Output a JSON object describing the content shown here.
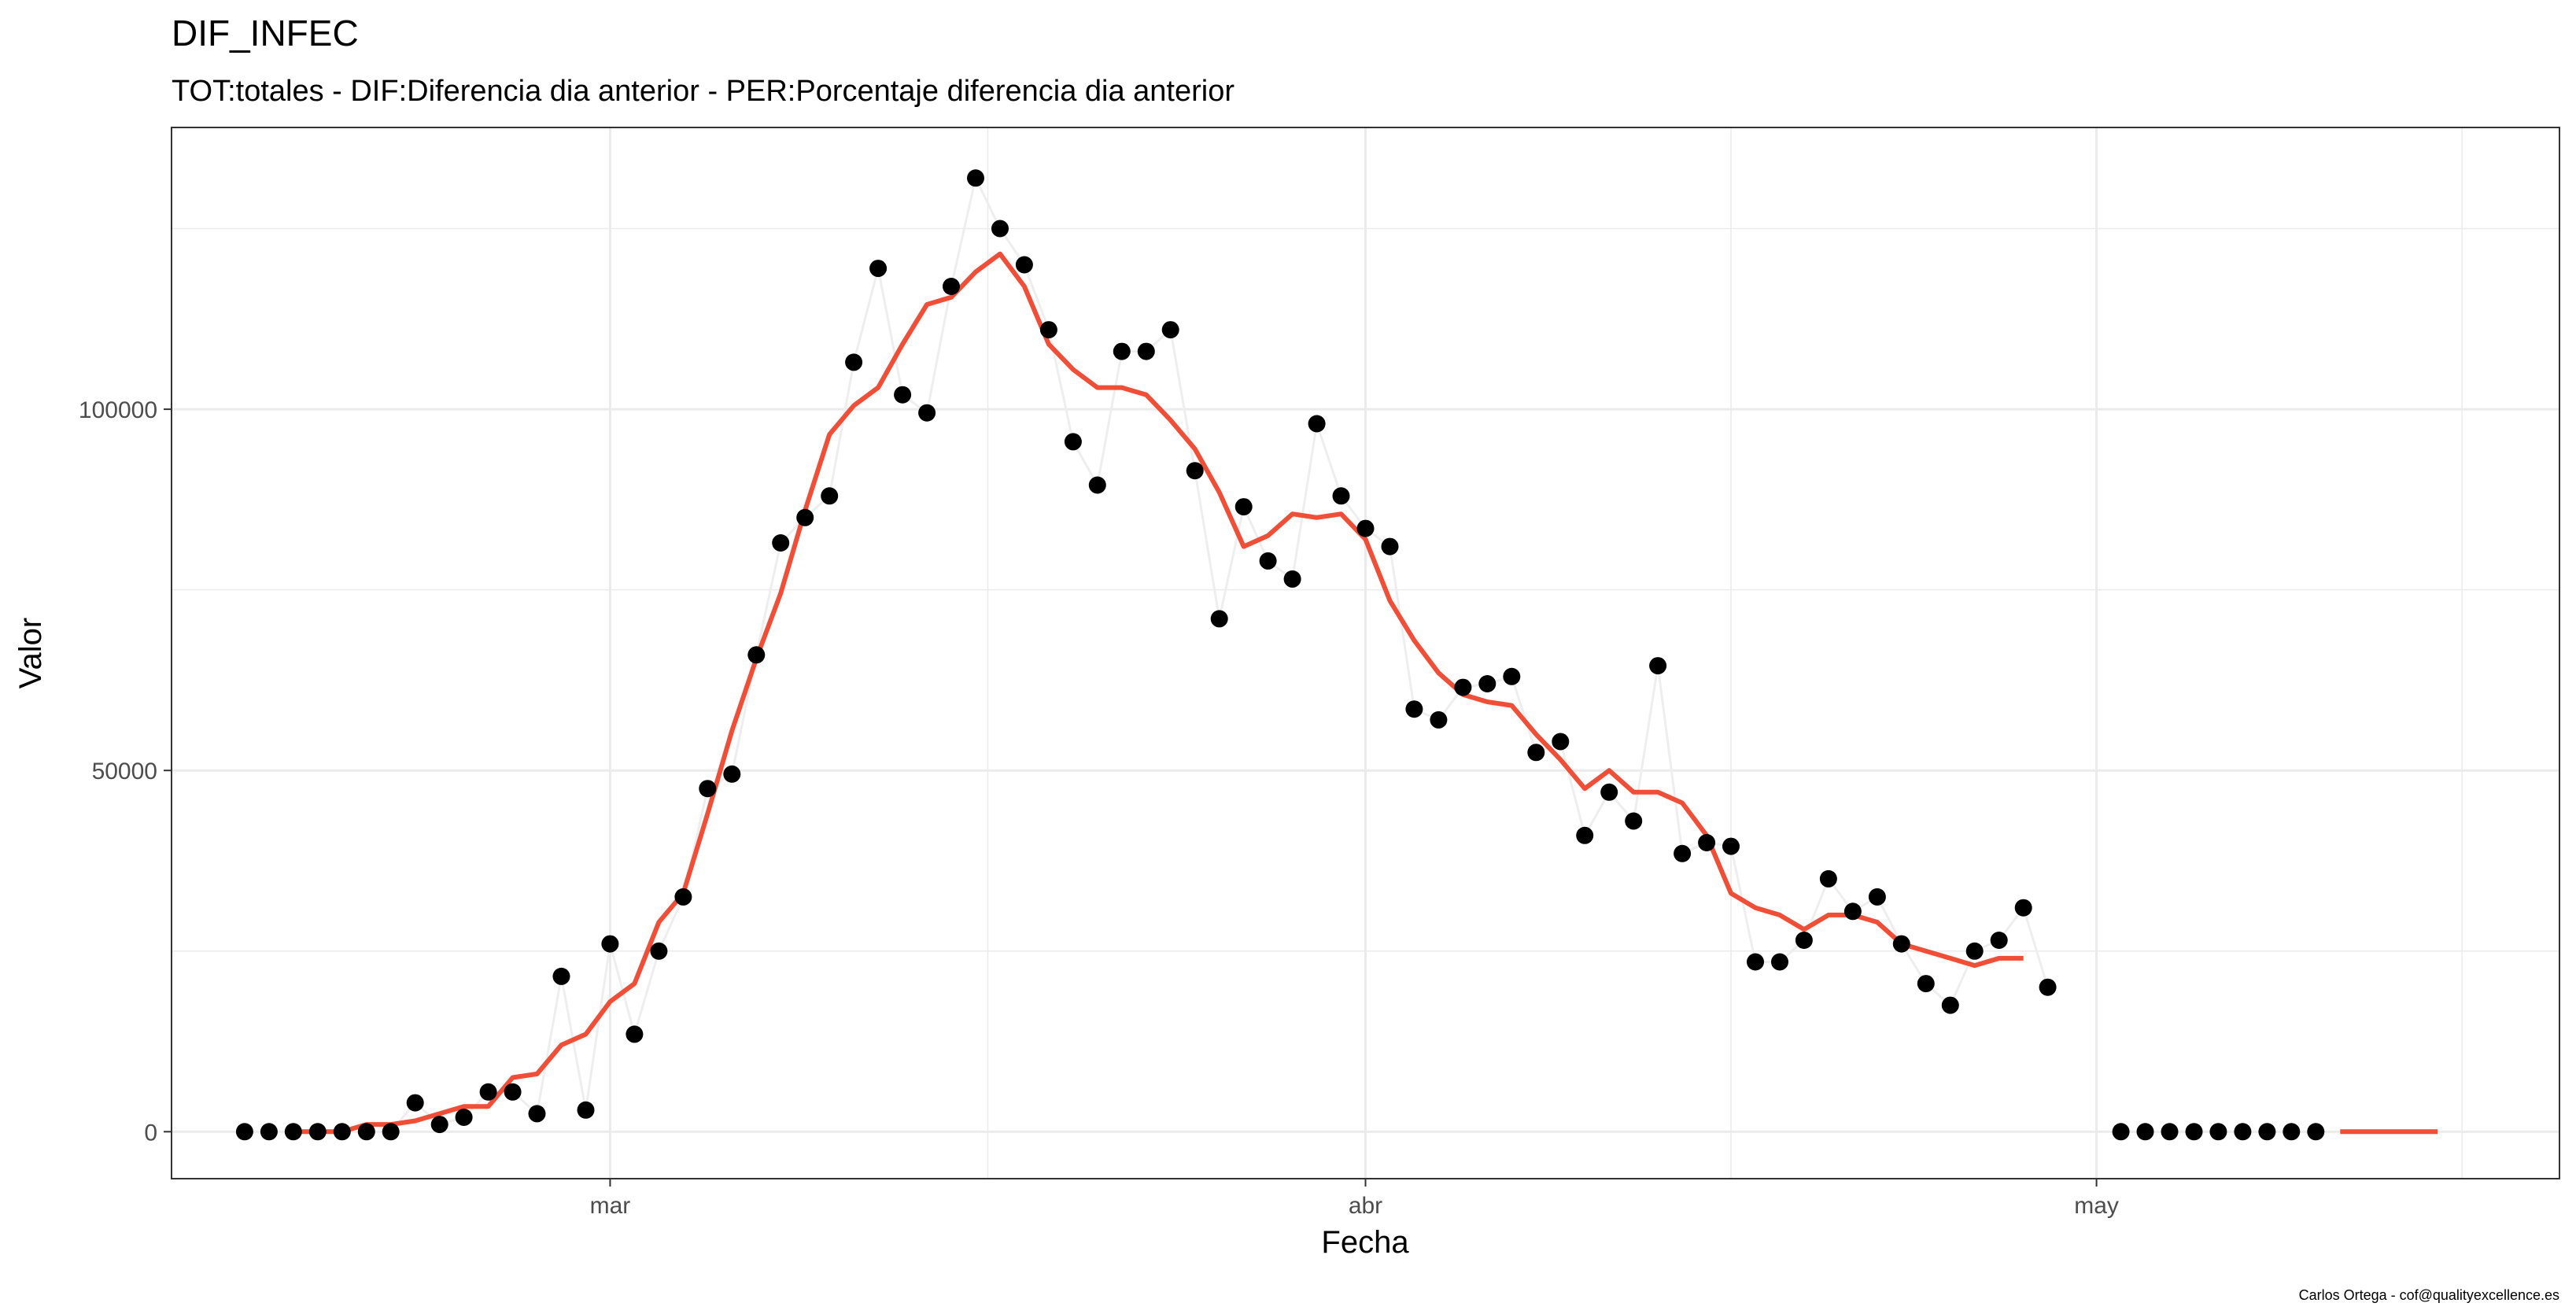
{
  "chart_data": {
    "type": "line",
    "title": "DIF_INFEC",
    "subtitle": "TOT:totales - DIF:Diferencia dia anterior - PER:Porcentaje diferencia dia anterior",
    "xlabel": "Fecha",
    "ylabel": "Valor",
    "caption": "Carlos Ortega - cof@qualityexcellence.es",
    "x_start": "2020-02-15",
    "x_ticks": [
      {
        "date": "2020-03-01",
        "label": "mar"
      },
      {
        "date": "2020-04-01",
        "label": "abr"
      },
      {
        "date": "2020-05-01",
        "label": "may"
      }
    ],
    "y_ticks": [
      0,
      50000,
      100000
    ],
    "xlim": [
      "2020-02-12",
      "2020-05-20"
    ],
    "ylim": [
      -6500,
      139000
    ],
    "grid": true,
    "colors": {
      "points": "#000000",
      "line": "#eeeeee",
      "trend": "#f04e37"
    },
    "series": [
      {
        "kind": "points",
        "start": "2020-02-15",
        "values": [
          0,
          0,
          0,
          0,
          0,
          0,
          0,
          4000,
          1000,
          2000,
          5500,
          5500,
          2500,
          21500,
          3000,
          26000,
          13500,
          25000,
          32500,
          47500,
          49500,
          66000,
          81500,
          85000,
          88000,
          106500,
          119500,
          102000,
          99500,
          117000,
          132000,
          125000,
          120000,
          111000,
          95500,
          89500,
          108000,
          108000,
          111000,
          91500,
          71000,
          86500,
          79000,
          76500,
          98000,
          88000,
          83500,
          81000,
          58500,
          57000,
          61500,
          62000,
          63000,
          52500,
          54000,
          41000,
          47000,
          43000,
          64500,
          38500,
          40000,
          39500,
          23500,
          23500,
          26500,
          35000,
          30500,
          32500,
          26000,
          20500,
          17500,
          25000,
          26500,
          31000,
          20000,
          null,
          null,
          0,
          0,
          0,
          0,
          0,
          0,
          0,
          0,
          0
        ]
      },
      {
        "kind": "moving_average",
        "start": "2020-02-17",
        "values": [
          0,
          0,
          0,
          1000,
          1000,
          1500,
          2500,
          3500,
          3500,
          7500,
          8000,
          12000,
          13500,
          18000,
          20500,
          29000,
          33000,
          44000,
          55500,
          65500,
          74500,
          86000,
          96500,
          100500,
          103000,
          109000,
          114500,
          115500,
          119000,
          121500,
          117000,
          109000,
          105500,
          103000,
          103000,
          102000,
          98500,
          94500,
          88500,
          81000,
          82500,
          85500,
          85000,
          85500,
          82000,
          73500,
          68000,
          63500,
          60500,
          59500,
          59000,
          55000,
          51500,
          47500,
          50000,
          47000,
          47000,
          45500,
          41000,
          33000,
          31000,
          30000,
          28000,
          30000,
          30000,
          29000,
          26000,
          25000,
          24000,
          23000,
          24000,
          24000,
          null,
          null,
          null,
          null,
          null,
          null,
          null,
          null,
          null,
          null,
          null,
          null,
          0,
          0,
          0,
          0,
          0
        ]
      }
    ]
  }
}
